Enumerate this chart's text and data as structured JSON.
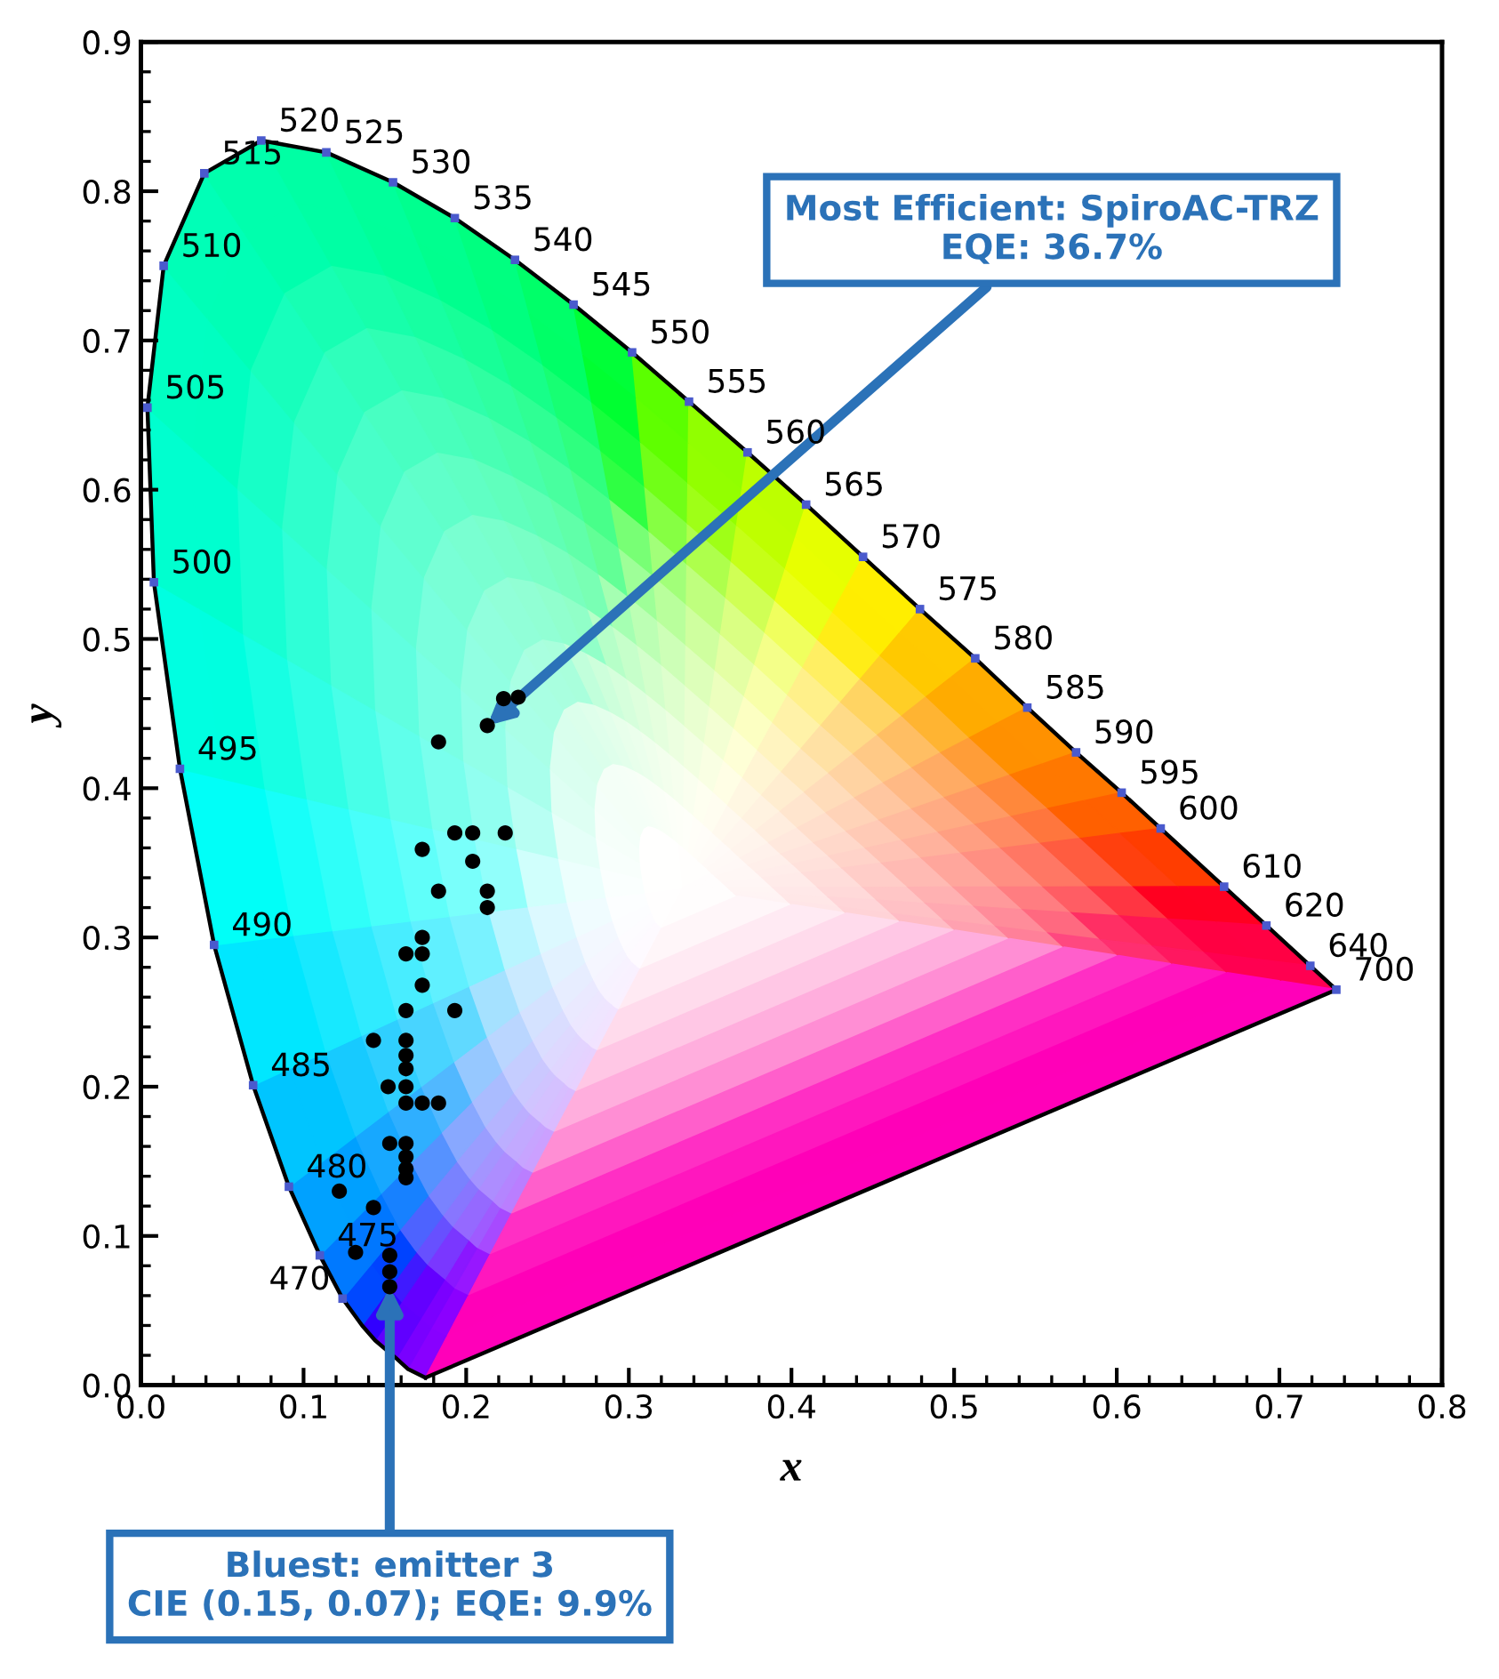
{
  "chart_data": {
    "type": "scatter",
    "xlabel": "x",
    "ylabel": "y",
    "xlim": [
      0,
      0.8
    ],
    "ylim": [
      0,
      0.9
    ],
    "xticks": [
      {
        "value": 0,
        "label": "0.0"
      },
      0.1,
      0.2,
      0.3,
      0.4,
      0.5,
      0.6,
      0.7,
      0.8
    ],
    "yticks": [
      {
        "value": 0,
        "label": "0.0"
      },
      0.1,
      0.2,
      0.3,
      0.4,
      0.5,
      0.6,
      0.7,
      0.8,
      0.9
    ],
    "grid": false,
    "legend": false,
    "series": [
      {
        "type": "line",
        "color": "#000000",
        "marker": "none",
        "x": [
          0.175,
          0.164,
          0.157,
          0.144,
          0.136,
          0.124,
          0.11,
          0.091,
          0.069,
          0.045,
          0.024,
          0.008,
          0.004,
          0.014,
          0.039,
          0.074,
          0.114,
          0.155,
          0.193,
          0.23,
          0.266,
          0.302,
          0.337,
          0.373,
          0.409,
          0.444,
          0.479,
          0.513,
          0.545,
          0.575,
          0.603,
          0.627,
          0.666,
          0.692,
          0.719,
          0.735
        ],
        "values": [
          0.005,
          0.011,
          0.018,
          0.03,
          0.04,
          0.058,
          0.087,
          0.133,
          0.201,
          0.295,
          0.413,
          0.538,
          0.655,
          0.75,
          0.812,
          0.834,
          0.826,
          0.806,
          0.782,
          0.754,
          0.724,
          0.692,
          0.659,
          0.625,
          0.59,
          0.555,
          0.52,
          0.487,
          0.454,
          0.424,
          0.397,
          0.373,
          0.334,
          0.308,
          0.281,
          0.265
        ]
      },
      {
        "type": "scatter",
        "color": "#4a5acd",
        "marker": "square",
        "x": [
          0.124,
          0.11,
          0.091,
          0.069,
          0.045,
          0.024,
          0.008,
          0.004,
          0.014,
          0.039,
          0.074,
          0.114,
          0.155,
          0.193,
          0.23,
          0.266,
          0.302,
          0.337,
          0.373,
          0.409,
          0.444,
          0.479,
          0.513,
          0.545,
          0.575,
          0.603,
          0.627,
          0.666,
          0.692,
          0.719,
          0.735
        ],
        "values": [
          0.058,
          0.087,
          0.133,
          0.201,
          0.295,
          0.413,
          0.538,
          0.655,
          0.75,
          0.812,
          0.834,
          0.826,
          0.806,
          0.782,
          0.754,
          0.724,
          0.692,
          0.659,
          0.625,
          0.59,
          0.555,
          0.52,
          0.487,
          0.454,
          0.424,
          0.397,
          0.373,
          0.334,
          0.308,
          0.281,
          0.265
        ]
      },
      {
        "type": "scatter",
        "color": "#000000",
        "marker": "circle",
        "x": [
          0.223,
          0.232,
          0.213,
          0.183,
          0.193,
          0.204,
          0.224,
          0.173,
          0.204,
          0.183,
          0.213,
          0.213,
          0.173,
          0.163,
          0.173,
          0.173,
          0.163,
          0.193,
          0.143,
          0.163,
          0.163,
          0.163,
          0.152,
          0.163,
          0.163,
          0.173,
          0.183,
          0.153,
          0.163,
          0.163,
          0.163,
          0.163,
          0.122,
          0.143,
          0.132,
          0.153,
          0.153,
          0.153
        ],
        "values": [
          0.46,
          0.461,
          0.442,
          0.431,
          0.37,
          0.37,
          0.37,
          0.359,
          0.351,
          0.331,
          0.331,
          0.32,
          0.3,
          0.289,
          0.289,
          0.268,
          0.251,
          0.251,
          0.231,
          0.231,
          0.221,
          0.212,
          0.2,
          0.2,
          0.189,
          0.189,
          0.189,
          0.162,
          0.162,
          0.153,
          0.145,
          0.139,
          0.13,
          0.119,
          0.089,
          0.087,
          0.076,
          0.066
        ]
      },
      {
        "type": "line",
        "color": "#000000",
        "marker": "none",
        "x": [
          0.735,
          0.175
        ],
        "values": [
          0.265,
          0.005
        ]
      }
    ],
    "annotations": [
      {
        "text": "470",
        "x": 0.124,
        "y": 0.058
      },
      {
        "text": "475",
        "x": 0.11,
        "y": 0.087
      },
      {
        "text": "480",
        "x": 0.091,
        "y": 0.133
      },
      {
        "text": "485",
        "x": 0.069,
        "y": 0.201
      },
      {
        "text": "490",
        "x": 0.045,
        "y": 0.295
      },
      {
        "text": "495",
        "x": 0.024,
        "y": 0.413
      },
      {
        "text": "500",
        "x": 0.008,
        "y": 0.538
      },
      {
        "text": "505",
        "x": 0.004,
        "y": 0.655
      },
      {
        "text": "510",
        "x": 0.014,
        "y": 0.75
      },
      {
        "text": "515",
        "x": 0.039,
        "y": 0.812
      },
      {
        "text": "520",
        "x": 0.074,
        "y": 0.834
      },
      {
        "text": "525",
        "x": 0.114,
        "y": 0.826
      },
      {
        "text": "530",
        "x": 0.155,
        "y": 0.806
      },
      {
        "text": "535",
        "x": 0.193,
        "y": 0.782
      },
      {
        "text": "540",
        "x": 0.23,
        "y": 0.754
      },
      {
        "text": "545",
        "x": 0.266,
        "y": 0.724
      },
      {
        "text": "550",
        "x": 0.302,
        "y": 0.692
      },
      {
        "text": "555",
        "x": 0.337,
        "y": 0.659
      },
      {
        "text": "560",
        "x": 0.373,
        "y": 0.625
      },
      {
        "text": "565",
        "x": 0.409,
        "y": 0.59
      },
      {
        "text": "570",
        "x": 0.444,
        "y": 0.555
      },
      {
        "text": "575",
        "x": 0.479,
        "y": 0.52
      },
      {
        "text": "580",
        "x": 0.513,
        "y": 0.487
      },
      {
        "text": "585",
        "x": 0.545,
        "y": 0.454
      },
      {
        "text": "590",
        "x": 0.575,
        "y": 0.424
      },
      {
        "text": "595",
        "x": 0.603,
        "y": 0.397
      },
      {
        "text": "600",
        "x": 0.627,
        "y": 0.373
      },
      {
        "text": "610",
        "x": 0.666,
        "y": 0.334
      },
      {
        "text": "620",
        "x": 0.692,
        "y": 0.308
      },
      {
        "text": "640",
        "x": 0.719,
        "y": 0.281
      },
      {
        "text": "700",
        "x": 0.735,
        "y": 0.265
      },
      {
        "text": "Most Efficient: SpiroAC-TRZ\nEQE: 36.7%",
        "x": 0.213,
        "y": 0.442
      },
      {
        "text": "Bluest: emitter 3\nCIE (0.15, 0.07); EQE: 9.9%",
        "x": 0.153,
        "y": 0.066
      }
    ]
  }
}
